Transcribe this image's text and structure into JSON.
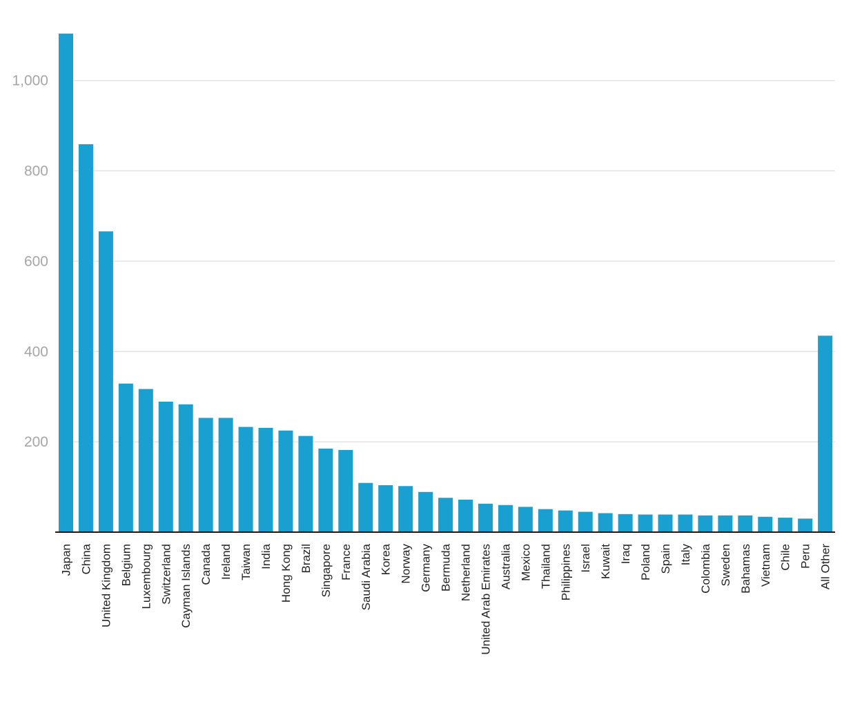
{
  "chart_data": {
    "type": "bar",
    "title": "",
    "xlabel": "",
    "ylabel": "",
    "ylim": [
      0,
      1105
    ],
    "yticks": [
      200,
      400,
      600,
      800,
      1000
    ],
    "ytick_labels": [
      "200",
      "400",
      "600",
      "800",
      "1,000"
    ],
    "grid": true,
    "legend": "none",
    "bar_color": "#1aa0d0",
    "categories": [
      "Japan",
      "China",
      "United Kingdom",
      "Belgium",
      "Luxembourg",
      "Switzerland",
      "Cayman Islands",
      "Canada",
      "Ireland",
      "Taiwan",
      "India",
      "Hong Kong",
      "Brazil",
      "Singapore",
      "France",
      "Saudi Arabia",
      "Korea",
      "Norway",
      "Germany",
      "Bermuda",
      "Netherland",
      "United Arab Emirates",
      "Australia",
      "Mexico",
      "Thailand",
      "Philippines",
      "Israel",
      "Kuwait",
      "Iraq",
      "Poland",
      "Spain",
      "Italy",
      "Colombia",
      "Sweden",
      "Bahamas",
      "Vietnam",
      "Chile",
      "Peru",
      "All Other"
    ],
    "values": [
      1104,
      859,
      666,
      329,
      317,
      289,
      283,
      253,
      253,
      233,
      231,
      225,
      213,
      185,
      182,
      109,
      104,
      102,
      89,
      76,
      72,
      63,
      60,
      56,
      51,
      48,
      45,
      42,
      40,
      39,
      39,
      39,
      37,
      37,
      37,
      34,
      32,
      30,
      435
    ]
  }
}
